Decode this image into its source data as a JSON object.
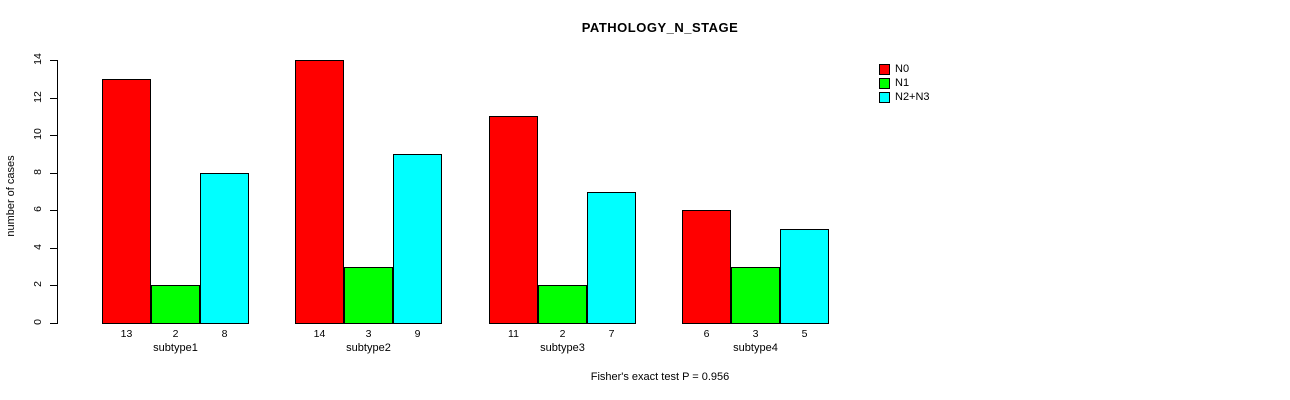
{
  "footer_note": "Fisher's exact test P = 0.956",
  "chart_data": {
    "type": "bar",
    "title": "PATHOLOGY_N_STAGE",
    "xlabel": "",
    "ylabel": "number of cases",
    "categories": [
      "subtype1",
      "subtype2",
      "subtype3",
      "subtype4"
    ],
    "series": [
      {
        "name": "N0",
        "color": "#ff0000",
        "values": [
          13,
          14,
          11,
          6
        ]
      },
      {
        "name": "N1",
        "color": "#00ff00",
        "values": [
          2,
          3,
          2,
          3
        ]
      },
      {
        "name": "N2+N3",
        "color": "#00ffff",
        "values": [
          8,
          9,
          7,
          5
        ]
      }
    ],
    "bar_value_labels": true,
    "ylim": [
      0,
      14
    ],
    "yticks": [
      0,
      2,
      4,
      6,
      8,
      10,
      12,
      14
    ],
    "grid": false,
    "legend_position": "top-right-outside",
    "annotation": "Fisher's exact test P = 0.956"
  }
}
